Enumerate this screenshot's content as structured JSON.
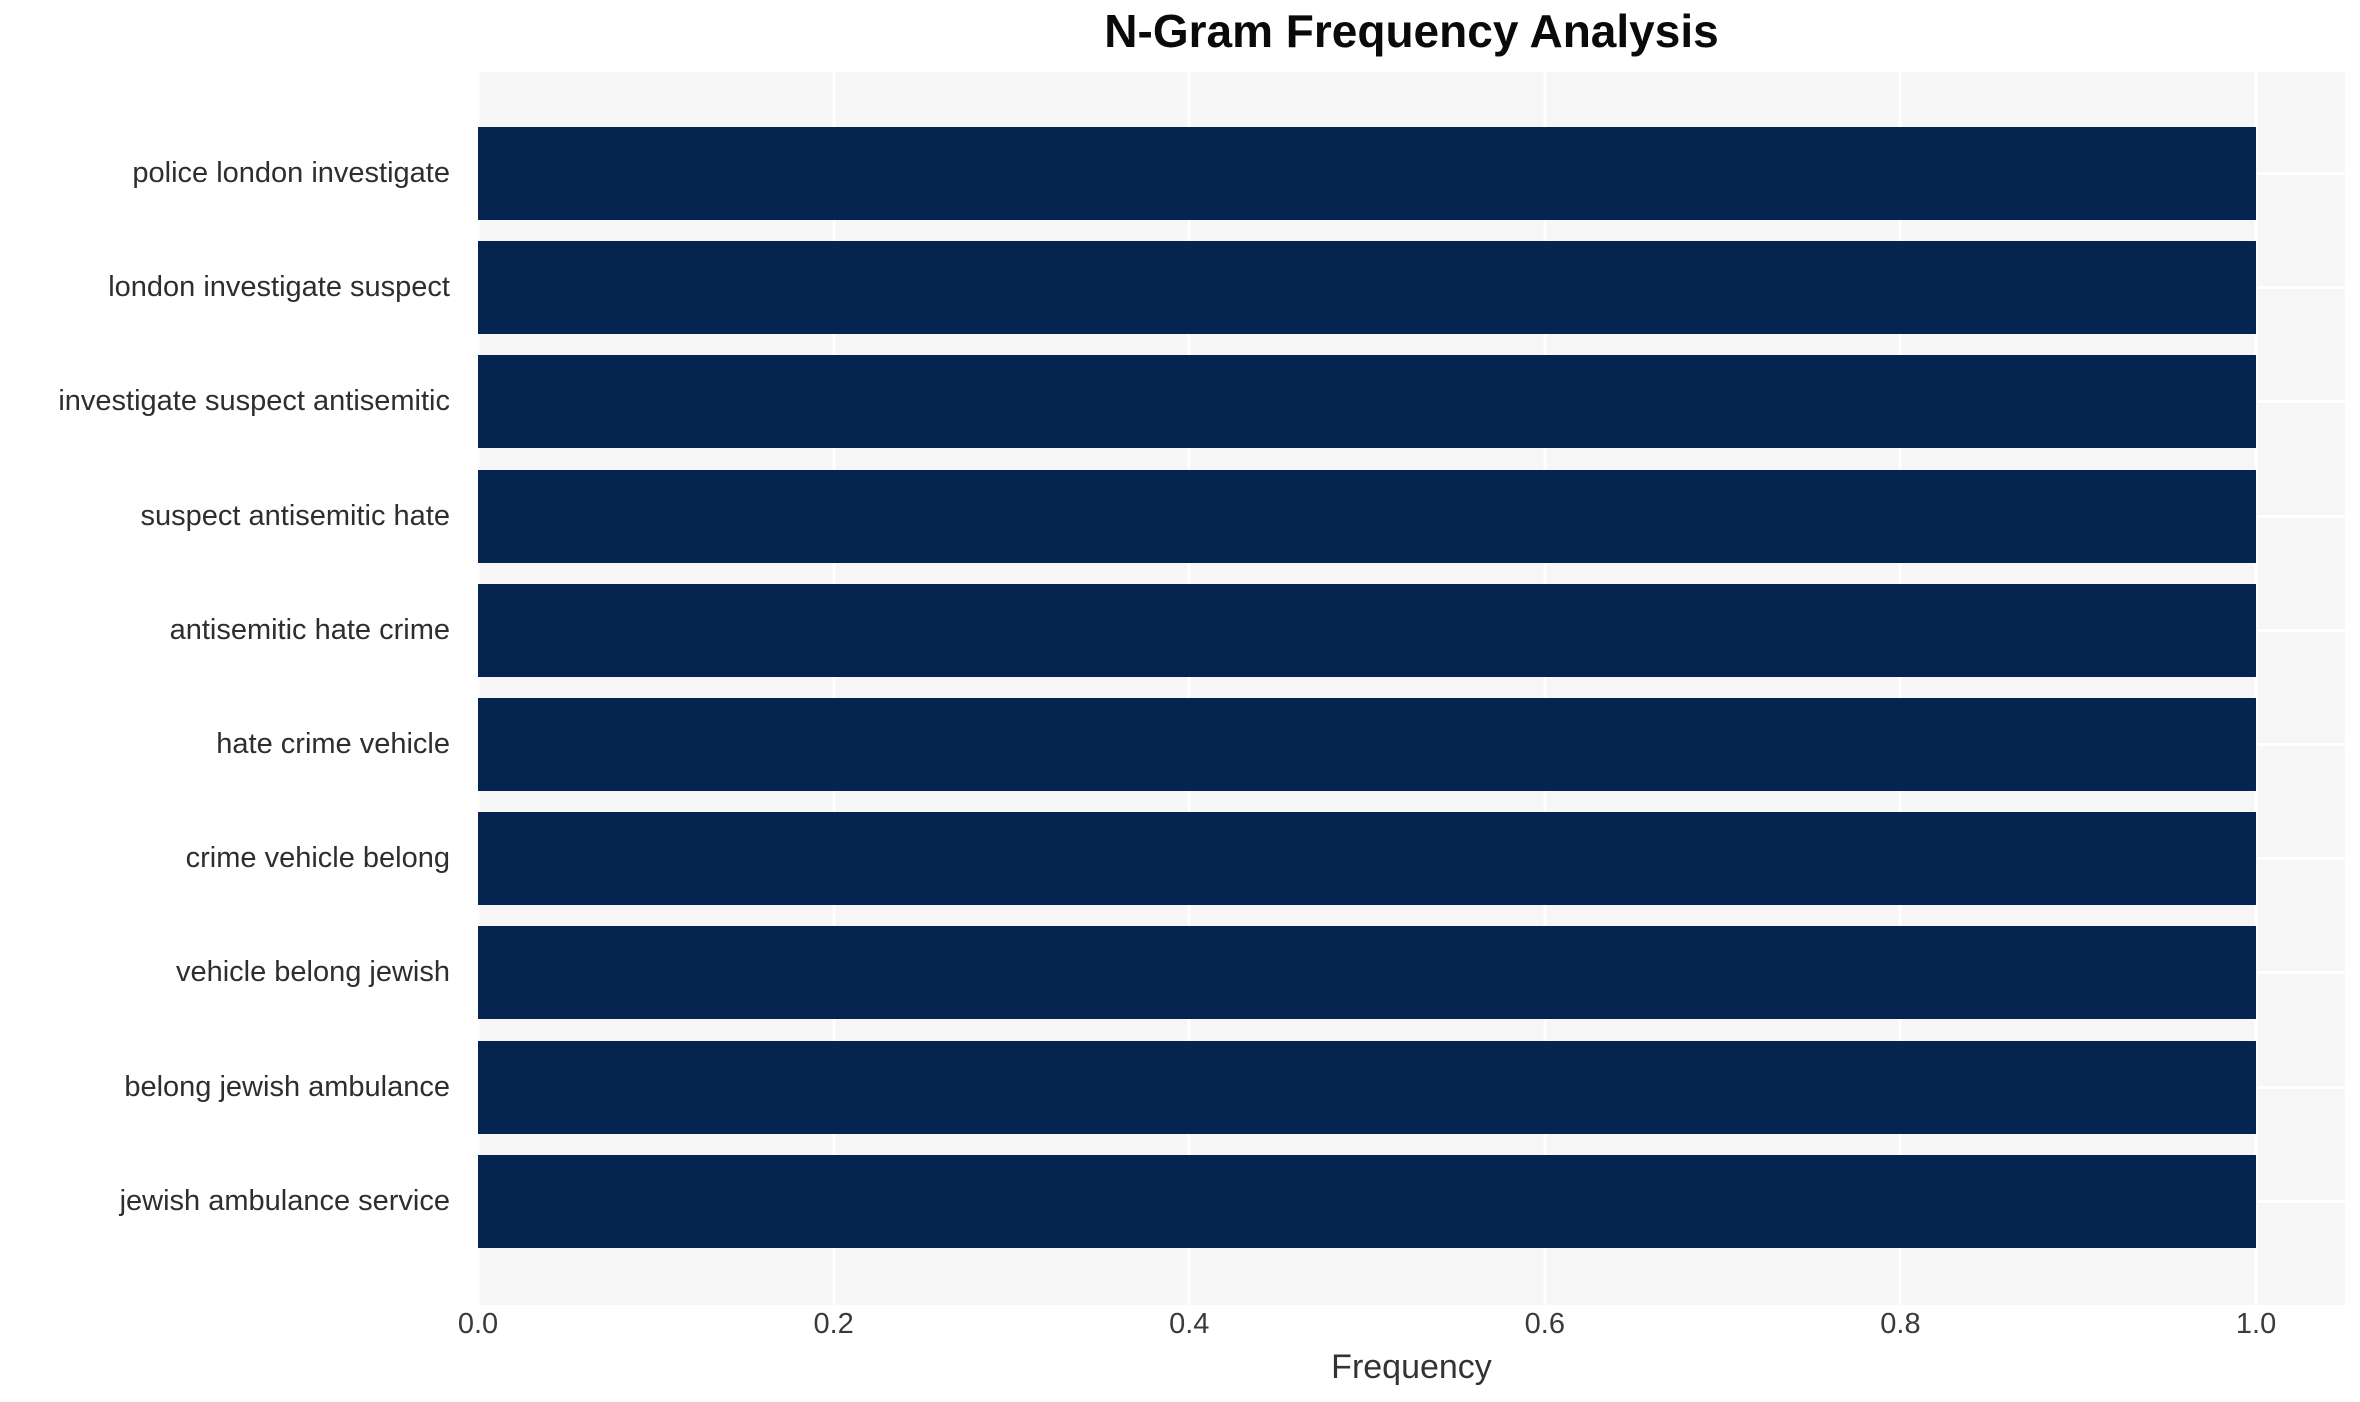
{
  "chart_data": {
    "type": "bar",
    "orientation": "horizontal",
    "title": "N-Gram Frequency Analysis",
    "xlabel": "Frequency",
    "ylabel": "",
    "categories": [
      "police london investigate",
      "london investigate suspect",
      "investigate suspect antisemitic",
      "suspect antisemitic hate",
      "antisemitic hate crime",
      "hate crime vehicle",
      "crime vehicle belong",
      "vehicle belong jewish",
      "belong jewish ambulance",
      "jewish ambulance service"
    ],
    "values": [
      1.0,
      1.0,
      1.0,
      1.0,
      1.0,
      1.0,
      1.0,
      1.0,
      1.0,
      1.0
    ],
    "x_ticks": [
      0.0,
      0.2,
      0.4,
      0.6,
      0.8,
      1.0
    ],
    "xlim": [
      0,
      1.05
    ],
    "grid": "white vertical gridlines at x ticks and white horizontal gridlines at bar centers on light gray panel",
    "legend": "none",
    "colors": {
      "bar": "#052450",
      "panel_background": "#f6f6f6",
      "gridline": "#ffffff",
      "title_text": "#0a0a0a",
      "axis_text": "#333333"
    }
  }
}
